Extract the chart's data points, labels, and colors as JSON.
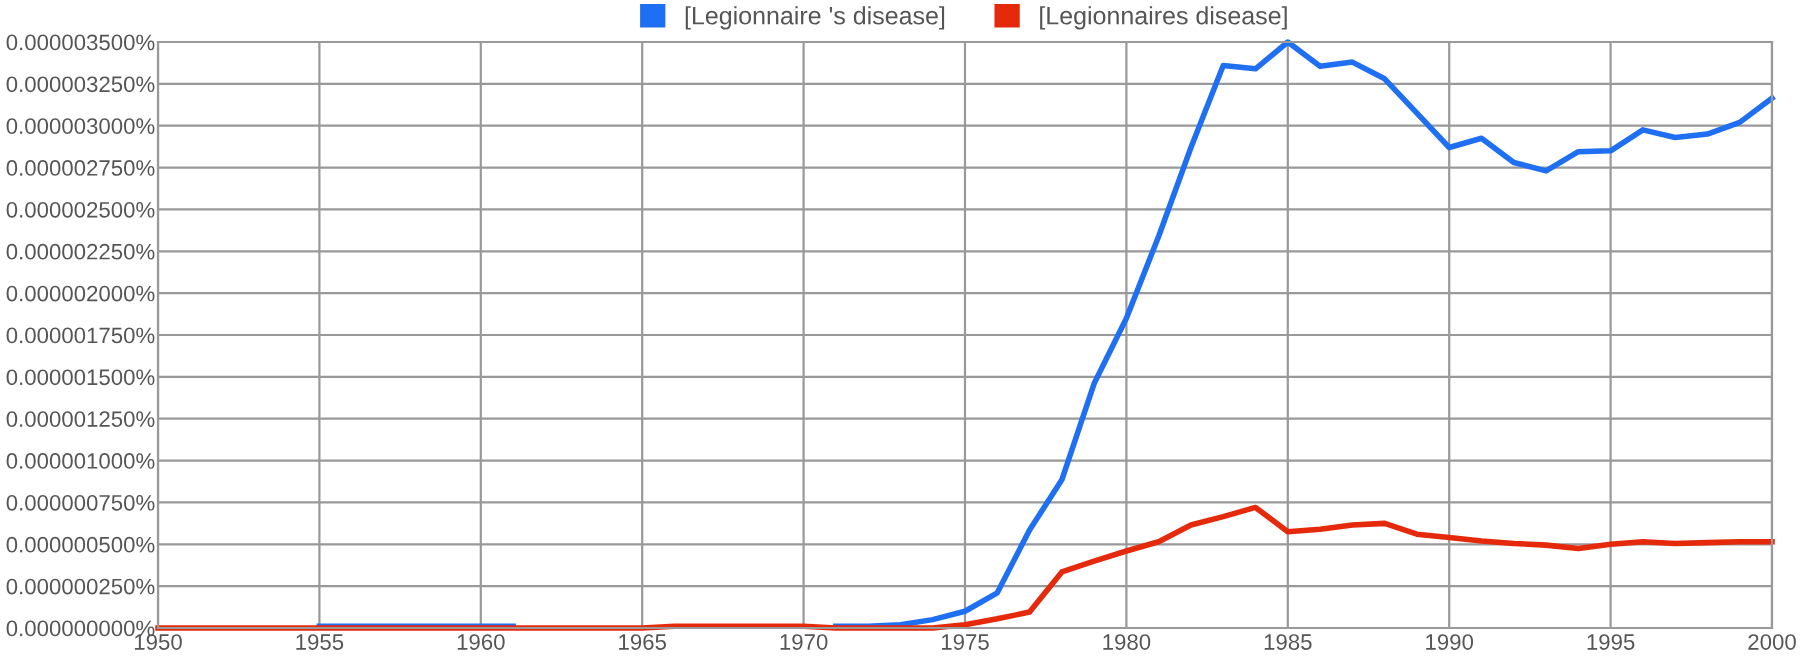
{
  "chart_data": {
    "type": "line",
    "x": [
      1950,
      1951,
      1952,
      1953,
      1954,
      1955,
      1956,
      1957,
      1958,
      1959,
      1960,
      1961,
      1962,
      1963,
      1964,
      1965,
      1966,
      1967,
      1968,
      1969,
      1970,
      1971,
      1972,
      1973,
      1974,
      1975,
      1976,
      1977,
      1978,
      1979,
      1980,
      1981,
      1982,
      1983,
      1984,
      1985,
      1986,
      1987,
      1988,
      1989,
      1990,
      1991,
      1992,
      1993,
      1994,
      1995,
      1996,
      1997,
      1998,
      1999,
      2000
    ],
    "series": [
      {
        "name": "[Legionnaire 's disease]",
        "color": "#1f6ff2",
        "values": [
          null,
          null,
          null,
          null,
          null,
          1e-08,
          1e-08,
          1e-08,
          1e-08,
          1e-08,
          1e-08,
          1e-08,
          null,
          null,
          null,
          null,
          null,
          null,
          null,
          null,
          null,
          1e-08,
          1e-08,
          2e-08,
          5e-08,
          1e-07,
          2.1e-07,
          5.85e-07,
          8.85e-07,
          1.46e-06,
          1.85e-06,
          2.34e-06,
          2.87e-06,
          3.36e-06,
          3.34e-06,
          3.5e-06,
          3.355e-06,
          3.38e-06,
          3.28e-06,
          3.075e-06,
          2.87e-06,
          2.925e-06,
          2.78e-06,
          2.73e-06,
          2.845e-06,
          2.85e-06,
          2.975e-06,
          2.93e-06,
          2.95e-06,
          3.02e-06,
          3.165e-06
        ]
      },
      {
        "name": "[Legionnaires disease]",
        "color": "#e5290b",
        "values": [
          0,
          0,
          0,
          0,
          0,
          0,
          0,
          0,
          0,
          0,
          0,
          0,
          0,
          0,
          0,
          0,
          1e-08,
          1e-08,
          1e-08,
          1e-08,
          1e-08,
          0,
          0,
          0,
          0,
          2e-08,
          5.5e-08,
          9.5e-08,
          3.35e-07,
          4e-07,
          4.6e-07,
          5.15e-07,
          6.15e-07,
          6.65e-07,
          7.2e-07,
          5.75e-07,
          5.9e-07,
          6.15e-07,
          6.25e-07,
          5.6e-07,
          5.4e-07,
          5.2e-07,
          5.05e-07,
          4.95e-07,
          4.75e-07,
          5e-07,
          5.15e-07,
          5.05e-07,
          5.1e-07,
          5.15e-07,
          5.15e-07
        ]
      }
    ],
    "xlim": [
      1950,
      2000
    ],
    "xticks": [
      1950,
      1955,
      1960,
      1965,
      1970,
      1975,
      1980,
      1985,
      1990,
      1995,
      2000
    ],
    "ylim": [
      0,
      3.5e-06
    ],
    "yticks": [
      {
        "value": 0,
        "label": "0.000000000%"
      },
      {
        "value": 2.5e-07,
        "label": "0.000000250%"
      },
      {
        "value": 5e-07,
        "label": "0.000000500%"
      },
      {
        "value": 7.5e-07,
        "label": "0.000000750%"
      },
      {
        "value": 1e-06,
        "label": "0.000001000%"
      },
      {
        "value": 1.25e-06,
        "label": "0.000001250%"
      },
      {
        "value": 1.5e-06,
        "label": "0.000001500%"
      },
      {
        "value": 1.75e-06,
        "label": "0.000001750%"
      },
      {
        "value": 2e-06,
        "label": "0.000002000%"
      },
      {
        "value": 2.25e-06,
        "label": "0.000002250%"
      },
      {
        "value": 2.5e-06,
        "label": "0.000002500%"
      },
      {
        "value": 2.75e-06,
        "label": "0.000002750%"
      },
      {
        "value": 3e-06,
        "label": "0.000003000%"
      },
      {
        "value": 3.25e-06,
        "label": "0.000003250%"
      },
      {
        "value": 3.5e-06,
        "label": "0.000003500%"
      }
    ],
    "grid": true,
    "legend": "top",
    "marker": "none",
    "line_style": "solid"
  }
}
